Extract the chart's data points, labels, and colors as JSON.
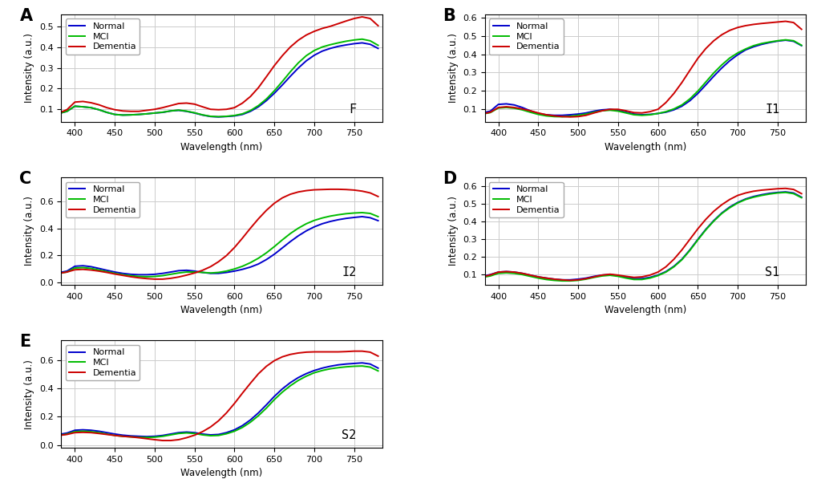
{
  "wavelengths": [
    380,
    390,
    400,
    410,
    420,
    430,
    440,
    450,
    460,
    470,
    480,
    490,
    500,
    510,
    520,
    530,
    540,
    550,
    560,
    570,
    580,
    590,
    600,
    610,
    620,
    630,
    640,
    650,
    660,
    670,
    680,
    690,
    700,
    710,
    720,
    730,
    740,
    750,
    760,
    770,
    780
  ],
  "panels": {
    "A": {
      "label": "F",
      "ylim": [
        0.04,
        0.56
      ],
      "yticks": [
        0.1,
        0.2,
        0.3,
        0.4,
        0.5
      ],
      "normal": [
        0.08,
        0.09,
        0.115,
        0.112,
        0.108,
        0.098,
        0.085,
        0.075,
        0.072,
        0.073,
        0.075,
        0.078,
        0.082,
        0.085,
        0.092,
        0.095,
        0.09,
        0.082,
        0.072,
        0.065,
        0.063,
        0.065,
        0.068,
        0.075,
        0.09,
        0.112,
        0.142,
        0.178,
        0.218,
        0.26,
        0.3,
        0.335,
        0.362,
        0.382,
        0.395,
        0.405,
        0.412,
        0.418,
        0.422,
        0.415,
        0.395
      ],
      "mci": [
        0.08,
        0.09,
        0.115,
        0.112,
        0.108,
        0.098,
        0.085,
        0.075,
        0.072,
        0.073,
        0.075,
        0.078,
        0.082,
        0.086,
        0.092,
        0.096,
        0.091,
        0.083,
        0.073,
        0.066,
        0.064,
        0.066,
        0.07,
        0.078,
        0.094,
        0.118,
        0.15,
        0.19,
        0.235,
        0.282,
        0.325,
        0.36,
        0.385,
        0.402,
        0.413,
        0.422,
        0.43,
        0.436,
        0.44,
        0.432,
        0.41
      ],
      "dementia": [
        0.082,
        0.098,
        0.135,
        0.138,
        0.132,
        0.122,
        0.108,
        0.098,
        0.092,
        0.09,
        0.09,
        0.095,
        0.1,
        0.108,
        0.118,
        0.128,
        0.13,
        0.125,
        0.112,
        0.1,
        0.098,
        0.1,
        0.108,
        0.13,
        0.162,
        0.205,
        0.258,
        0.312,
        0.36,
        0.402,
        0.435,
        0.46,
        0.478,
        0.492,
        0.502,
        0.515,
        0.528,
        0.54,
        0.548,
        0.54,
        0.505
      ]
    },
    "B": {
      "label": "I1",
      "ylim": [
        0.03,
        0.62
      ],
      "yticks": [
        0.1,
        0.2,
        0.3,
        0.4,
        0.5,
        0.6
      ],
      "normal": [
        0.078,
        0.088,
        0.125,
        0.128,
        0.122,
        0.108,
        0.09,
        0.075,
        0.068,
        0.065,
        0.065,
        0.068,
        0.072,
        0.078,
        0.088,
        0.095,
        0.098,
        0.092,
        0.082,
        0.072,
        0.068,
        0.07,
        0.075,
        0.082,
        0.095,
        0.115,
        0.145,
        0.185,
        0.232,
        0.28,
        0.325,
        0.365,
        0.398,
        0.425,
        0.442,
        0.455,
        0.465,
        0.473,
        0.478,
        0.472,
        0.448
      ],
      "mci": [
        0.072,
        0.08,
        0.105,
        0.108,
        0.104,
        0.095,
        0.082,
        0.07,
        0.062,
        0.058,
        0.057,
        0.06,
        0.065,
        0.072,
        0.082,
        0.09,
        0.093,
        0.088,
        0.078,
        0.068,
        0.065,
        0.068,
        0.075,
        0.085,
        0.1,
        0.122,
        0.155,
        0.198,
        0.248,
        0.298,
        0.342,
        0.38,
        0.408,
        0.43,
        0.448,
        0.46,
        0.468,
        0.475,
        0.48,
        0.475,
        0.45
      ],
      "dementia": [
        0.072,
        0.082,
        0.108,
        0.112,
        0.108,
        0.1,
        0.09,
        0.078,
        0.068,
        0.062,
        0.058,
        0.056,
        0.058,
        0.065,
        0.078,
        0.09,
        0.098,
        0.098,
        0.09,
        0.08,
        0.078,
        0.085,
        0.098,
        0.135,
        0.185,
        0.245,
        0.312,
        0.378,
        0.432,
        0.475,
        0.508,
        0.532,
        0.548,
        0.558,
        0.565,
        0.57,
        0.574,
        0.578,
        0.582,
        0.575,
        0.538
      ]
    },
    "C": {
      "label": "I2",
      "ylim": [
        -0.02,
        0.78
      ],
      "yticks": [
        0.0,
        0.2,
        0.4,
        0.6
      ],
      "normal": [
        0.07,
        0.082,
        0.118,
        0.122,
        0.115,
        0.102,
        0.088,
        0.075,
        0.065,
        0.058,
        0.055,
        0.055,
        0.058,
        0.065,
        0.075,
        0.085,
        0.088,
        0.082,
        0.072,
        0.065,
        0.065,
        0.072,
        0.082,
        0.095,
        0.112,
        0.135,
        0.168,
        0.208,
        0.255,
        0.302,
        0.345,
        0.382,
        0.412,
        0.435,
        0.452,
        0.465,
        0.475,
        0.482,
        0.488,
        0.48,
        0.458
      ],
      "mci": [
        0.065,
        0.075,
        0.105,
        0.108,
        0.102,
        0.09,
        0.078,
        0.065,
        0.055,
        0.048,
        0.042,
        0.04,
        0.042,
        0.048,
        0.058,
        0.068,
        0.075,
        0.075,
        0.072,
        0.068,
        0.072,
        0.082,
        0.098,
        0.118,
        0.145,
        0.178,
        0.218,
        0.265,
        0.315,
        0.362,
        0.402,
        0.435,
        0.46,
        0.478,
        0.492,
        0.502,
        0.51,
        0.515,
        0.518,
        0.512,
        0.488
      ],
      "dementia": [
        0.065,
        0.075,
        0.092,
        0.095,
        0.09,
        0.082,
        0.072,
        0.06,
        0.05,
        0.04,
        0.032,
        0.026,
        0.022,
        0.022,
        0.028,
        0.038,
        0.052,
        0.068,
        0.088,
        0.115,
        0.152,
        0.198,
        0.258,
        0.328,
        0.402,
        0.472,
        0.535,
        0.588,
        0.628,
        0.655,
        0.672,
        0.682,
        0.688,
        0.69,
        0.692,
        0.692,
        0.69,
        0.686,
        0.678,
        0.665,
        0.638
      ]
    },
    "D": {
      "label": "S1",
      "ylim": [
        0.04,
        0.65
      ],
      "yticks": [
        0.1,
        0.2,
        0.3,
        0.4,
        0.5,
        0.6
      ],
      "normal": [
        0.088,
        0.098,
        0.112,
        0.115,
        0.112,
        0.105,
        0.095,
        0.085,
        0.078,
        0.072,
        0.068,
        0.068,
        0.072,
        0.078,
        0.088,
        0.095,
        0.098,
        0.092,
        0.082,
        0.075,
        0.075,
        0.082,
        0.095,
        0.115,
        0.145,
        0.185,
        0.238,
        0.298,
        0.355,
        0.405,
        0.448,
        0.482,
        0.508,
        0.528,
        0.542,
        0.552,
        0.56,
        0.565,
        0.568,
        0.562,
        0.538
      ],
      "mci": [
        0.082,
        0.09,
        0.105,
        0.108,
        0.105,
        0.098,
        0.088,
        0.078,
        0.07,
        0.065,
        0.062,
        0.062,
        0.065,
        0.072,
        0.082,
        0.09,
        0.094,
        0.088,
        0.078,
        0.07,
        0.07,
        0.078,
        0.092,
        0.112,
        0.142,
        0.182,
        0.235,
        0.295,
        0.352,
        0.402,
        0.445,
        0.478,
        0.505,
        0.525,
        0.538,
        0.548,
        0.556,
        0.562,
        0.565,
        0.558,
        0.535
      ],
      "dementia": [
        0.085,
        0.096,
        0.112,
        0.115,
        0.112,
        0.105,
        0.095,
        0.085,
        0.078,
        0.072,
        0.068,
        0.065,
        0.068,
        0.075,
        0.085,
        0.095,
        0.1,
        0.095,
        0.088,
        0.082,
        0.085,
        0.095,
        0.112,
        0.142,
        0.185,
        0.238,
        0.298,
        0.358,
        0.412,
        0.458,
        0.495,
        0.525,
        0.548,
        0.562,
        0.572,
        0.578,
        0.582,
        0.586,
        0.588,
        0.582,
        0.558
      ]
    },
    "E": {
      "label": "S2",
      "ylim": [
        -0.02,
        0.74
      ],
      "yticks": [
        0.0,
        0.2,
        0.4,
        0.6
      ],
      "normal": [
        0.075,
        0.085,
        0.105,
        0.108,
        0.105,
        0.098,
        0.088,
        0.078,
        0.07,
        0.065,
        0.062,
        0.06,
        0.062,
        0.068,
        0.078,
        0.088,
        0.092,
        0.088,
        0.078,
        0.072,
        0.075,
        0.088,
        0.108,
        0.138,
        0.178,
        0.228,
        0.285,
        0.345,
        0.398,
        0.442,
        0.478,
        0.506,
        0.528,
        0.545,
        0.558,
        0.568,
        0.574,
        0.578,
        0.582,
        0.574,
        0.545
      ],
      "mci": [
        0.068,
        0.078,
        0.095,
        0.098,
        0.095,
        0.088,
        0.078,
        0.068,
        0.062,
        0.058,
        0.055,
        0.054,
        0.056,
        0.062,
        0.072,
        0.082,
        0.086,
        0.082,
        0.072,
        0.066,
        0.068,
        0.08,
        0.098,
        0.125,
        0.162,
        0.208,
        0.262,
        0.322,
        0.375,
        0.42,
        0.458,
        0.488,
        0.512,
        0.528,
        0.54,
        0.548,
        0.554,
        0.558,
        0.56,
        0.552,
        0.525
      ],
      "dementia": [
        0.068,
        0.075,
        0.088,
        0.09,
        0.088,
        0.082,
        0.075,
        0.068,
        0.062,
        0.058,
        0.052,
        0.045,
        0.038,
        0.032,
        0.032,
        0.038,
        0.052,
        0.07,
        0.095,
        0.128,
        0.172,
        0.228,
        0.295,
        0.368,
        0.438,
        0.505,
        0.558,
        0.598,
        0.625,
        0.642,
        0.652,
        0.658,
        0.66,
        0.66,
        0.66,
        0.66,
        0.662,
        0.665,
        0.665,
        0.658,
        0.63
      ]
    }
  },
  "colors": {
    "normal": "#0000CC",
    "mci": "#00BB00",
    "dementia": "#CC0000"
  },
  "xlabel": "Wavelength (nm)",
  "ylabel": "Intensity (a.u.)",
  "xticks": [
    400,
    450,
    500,
    550,
    600,
    650,
    700,
    750
  ],
  "xlim": [
    383,
    785
  ],
  "line_width": 1.4,
  "bg_color": "#ffffff",
  "grid_color": "#cccccc"
}
